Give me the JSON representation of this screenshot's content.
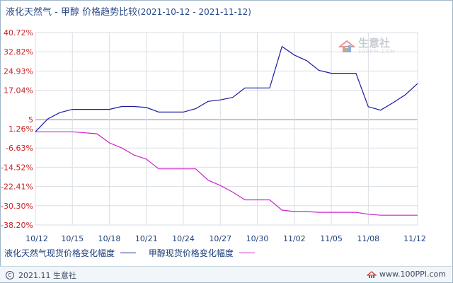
{
  "title": {
    "main": "液化天然气 - 甲醇 价格趋势比较",
    "range": "(2021-10-12 - 2021-11-12)"
  },
  "chart_data": {
    "type": "line",
    "x": [
      "10/12",
      "10/13",
      "10/14",
      "10/15",
      "10/16",
      "10/17",
      "10/18",
      "10/19",
      "10/20",
      "10/21",
      "10/22",
      "10/23",
      "10/24",
      "10/25",
      "10/26",
      "10/27",
      "10/28",
      "10/29",
      "10/30",
      "10/31",
      "11/01",
      "11/02",
      "11/03",
      "11/04",
      "11/05",
      "11/06",
      "11/07",
      "11/08",
      "11/09",
      "11/10",
      "11/11",
      "11/12"
    ],
    "x_ticks": [
      "10/12",
      "10/15",
      "10/18",
      "10/21",
      "10/24",
      "10/27",
      "10/30",
      "11/02",
      "11/05",
      "11/08",
      "11/12"
    ],
    "x_tick_index": [
      0,
      3,
      6,
      9,
      12,
      15,
      18,
      21,
      24,
      27,
      31
    ],
    "y_ticks": [
      40.72,
      32.82,
      24.93,
      17.04,
      5,
      1.26,
      -6.63,
      -14.52,
      -22.41,
      -30.3,
      -38.2
    ],
    "y_tick_labels": [
      "40.72%",
      "32.82%",
      "24.93%",
      "17.04%",
      "5",
      "1.26%",
      "-6.63%",
      "-14.52%",
      "-22.41%",
      "-30.30%",
      "-38.20%"
    ],
    "ylim": [
      -38.2,
      40.72
    ],
    "grid": true,
    "series": [
      {
        "name": "液化天然气现货价格变化幅度",
        "color": "#1a1aa0",
        "values": [
          0,
          5.3,
          7.9,
          9.2,
          9.2,
          9.2,
          9.2,
          10.4,
          10.4,
          10.0,
          8.1,
          8.1,
          8.1,
          9.5,
          12.5,
          13.1,
          14.1,
          18.0,
          18.0,
          18.0,
          35.0,
          31.5,
          29.2,
          25.2,
          24.0,
          24.0,
          24.0,
          10.3,
          8.9,
          11.9,
          15.2,
          19.8
        ]
      },
      {
        "name": "甲醇现货价格变化幅度",
        "color": "#cc22cc",
        "values": [
          0,
          0,
          0,
          0,
          -0.4,
          -0.8,
          -4.5,
          -6.6,
          -9.5,
          -11.2,
          -15.2,
          -15.2,
          -15.2,
          -15.2,
          -19.8,
          -22.0,
          -24.7,
          -27.9,
          -27.9,
          -27.9,
          -32.1,
          -32.7,
          -32.7,
          -33.0,
          -33.0,
          -33.0,
          -33.0,
          -33.8,
          -34.2,
          -34.2,
          -34.2,
          -34.2
        ]
      }
    ]
  },
  "legend": {
    "lng_label": "液化天然气现货价格变化幅度",
    "lng_color": "#1a1aa0",
    "methanol_label": "甲醇现货价格变化幅度",
    "methanol_color": "#cc22cc"
  },
  "watermark": {
    "name": "生意社",
    "url": "100PPI.COM"
  },
  "footer": {
    "copyright": "2021.11 生意社",
    "site": "www.100PPI.com"
  }
}
